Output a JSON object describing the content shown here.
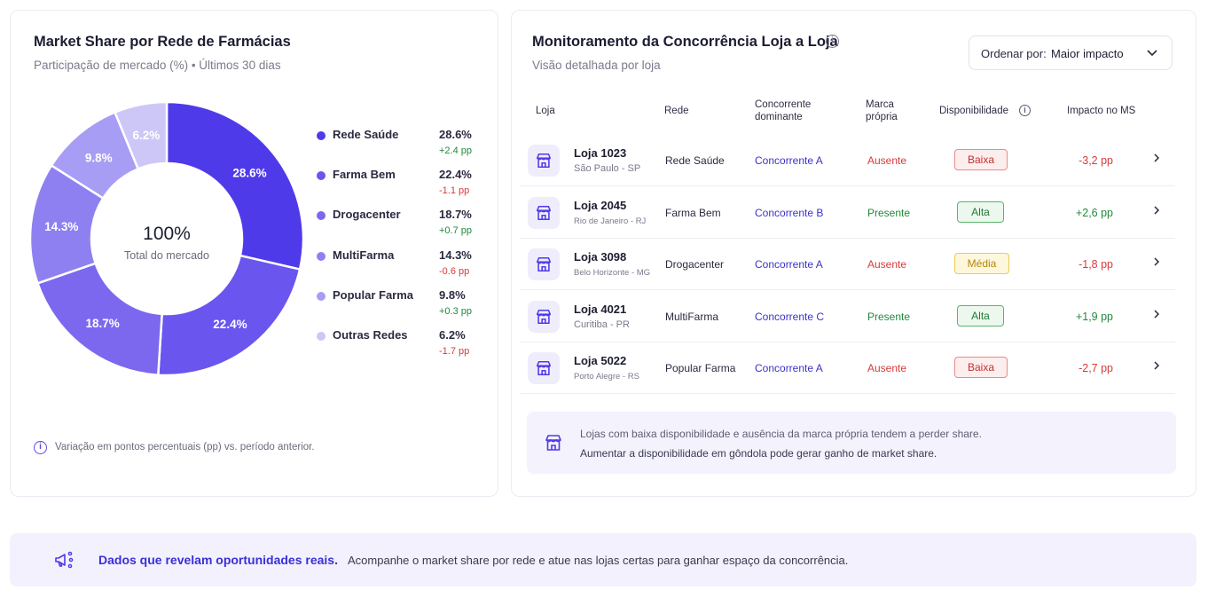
{
  "market_share": {
    "title": "Market Share por Rede de Farmácias",
    "subtitle": "Participação de mercado (%) • Últimos 30 dias",
    "center_value": "100%",
    "center_label": "Total do mercado",
    "footnote": "Variação em pontos percentuais (pp) vs. período anterior.",
    "chart_data": {
      "type": "pie",
      "categories": [
        "Rede Saúde",
        "Farma Bem",
        "Drogacenter",
        "MultiFarma",
        "Popular Farma",
        "Outras Redes"
      ],
      "values": [
        28.6,
        22.4,
        18.7,
        14.3,
        9.8,
        6.2
      ],
      "colors": [
        "#4f3aea",
        "#6a55ee",
        "#7b68ef",
        "#8f80f2",
        "#a89df4",
        "#cdc7f8"
      ]
    },
    "slice_labels": [
      "28.6%",
      "22.4%",
      "18.7%",
      "14.3%",
      "9.8%",
      "6.2%"
    ],
    "legend": [
      {
        "label": "Rede Saúde",
        "value": "28.6%",
        "delta": "+2.4 pp",
        "trend": "up"
      },
      {
        "label": "Farma Bem",
        "value": "22.4%",
        "delta": "-1.1 pp",
        "trend": "down"
      },
      {
        "label": "Drogacenter",
        "value": "18.7%",
        "delta": "+0.7 pp",
        "trend": "up"
      },
      {
        "label": "MultiFarma",
        "value": "14.3%",
        "delta": "-0.6 pp",
        "trend": "down"
      },
      {
        "label": "Popular Farma",
        "value": "9.8%",
        "delta": "+0.3 pp",
        "trend": "up"
      },
      {
        "label": "Outras Redes",
        "value": "6.2%",
        "delta": "-1.7 pp",
        "trend": "down"
      }
    ]
  },
  "monitor": {
    "title": "Monitoramento da Concorrência Loja a Loja",
    "subtitle": "Visão detalhada por loja",
    "sort_label": "Ordenar por:",
    "sort_value": "Maior impacto",
    "headers": {
      "loja": "Loja",
      "rede": "Rede",
      "concorrente_1": "Concorrente",
      "concorrente_2": "dominante",
      "marca_1": "Marca",
      "marca_2": "própria",
      "disponibilidade": "Disponibilidade",
      "impacto": "Impacto no MS"
    },
    "rows": [
      {
        "store": "Loja 1023",
        "city": "São Paulo - SP",
        "network": "Rede Saúde",
        "competitor": "Concorrente A",
        "brand": "Ausente",
        "availability": "Baixa",
        "impact": "-3,2 pp"
      },
      {
        "store": "Loja 2045",
        "city": "Rio de Janeiro - RJ",
        "network": "Farma Bem",
        "competitor": "Concorrente B",
        "brand": "Presente",
        "availability": "Alta",
        "impact": "+2,6 pp"
      },
      {
        "store": "Loja 3098",
        "city": "Belo Horizonte - MG",
        "network": "Drogacenter",
        "competitor": "Concorrente A",
        "brand": "Ausente",
        "availability": "Média",
        "impact": "-1,8 pp"
      },
      {
        "store": "Loja 4021",
        "city": "Curitiba - PR",
        "network": "MultiFarma",
        "competitor": "Concorrente C",
        "brand": "Presente",
        "availability": "Alta",
        "impact": "+1,9 pp"
      },
      {
        "store": "Loja 5022",
        "city": "Porto Alegre - RS",
        "network": "Popular Farma",
        "competitor": "Concorrente A",
        "brand": "Ausente",
        "availability": "Baixa",
        "impact": "-2,7 pp"
      }
    ],
    "insight_line1": "Lojas com baixa disponibilidade e ausência da marca própria tendem a perder share.",
    "insight_line2": "Aumentar a disponibilidade em gôndola pode gerar ganho de market share."
  },
  "banner": {
    "highlight": "Dados que revelam oportunidades reais.",
    "text": "Acompanhe o market share por rede e atue nas lojas certas para ganhar espaço da concorrência."
  },
  "icons": {
    "info": "info-icon",
    "store": "store-icon",
    "chevron": "chevron-right-icon",
    "dropdown": "chevron-down-icon",
    "megaphone": "megaphone-icon"
  },
  "colors": {
    "accent": "#4f3aea",
    "positive": "#1f8a3a",
    "negative": "#d83a3a"
  }
}
